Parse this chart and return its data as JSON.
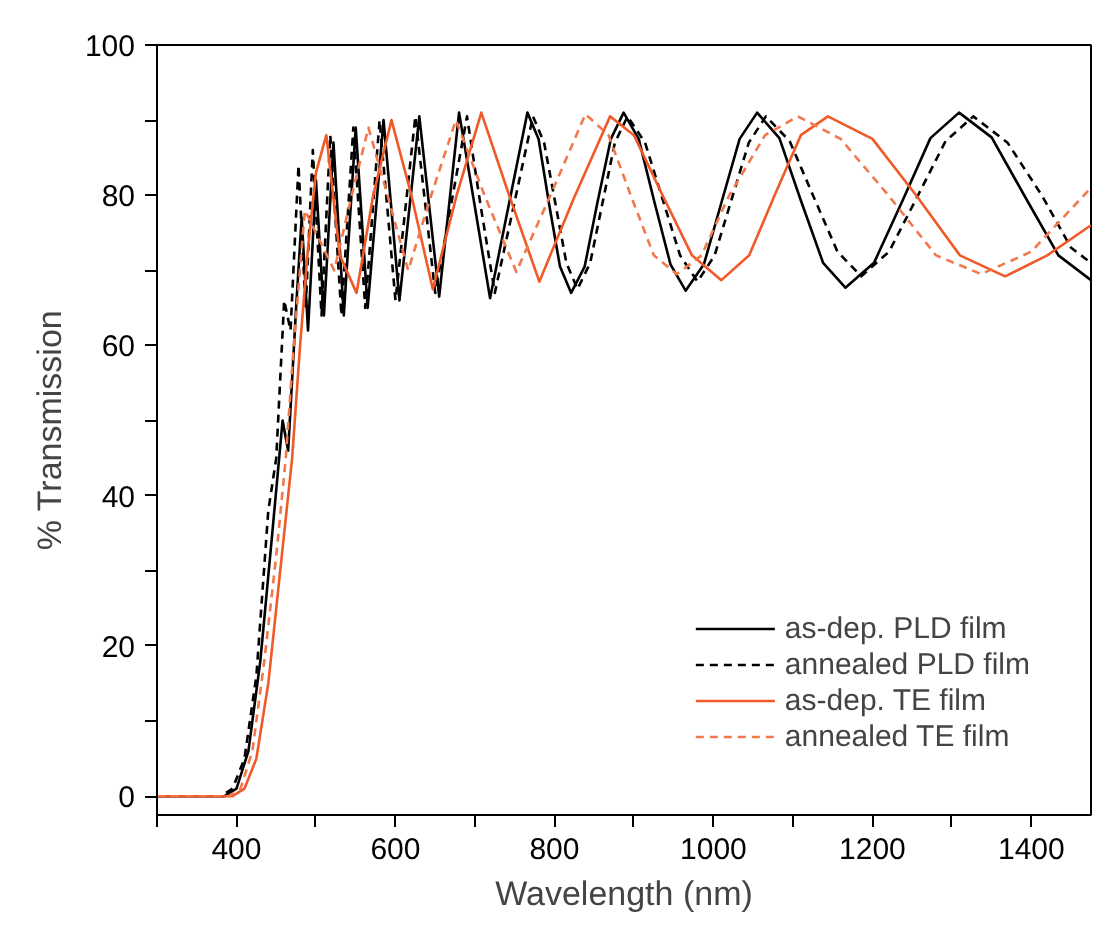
{
  "chart_data": {
    "type": "line",
    "xlabel": "Wavelength (nm)",
    "ylabel": "% Transmission",
    "xlim": [
      300,
      1475
    ],
    "ylim": [
      -2.5,
      100
    ],
    "xticks": [
      {
        "value": 300,
        "label": null
      },
      400,
      {
        "value": 500,
        "label": null
      },
      600,
      {
        "value": 700,
        "label": null
      },
      800,
      {
        "value": 900,
        "label": null
      },
      1000,
      {
        "value": 1100,
        "label": null
      },
      1200,
      {
        "value": 1300,
        "label": null
      },
      1400
    ],
    "yticks": [
      0,
      {
        "value": 10,
        "label": null
      },
      20,
      {
        "value": 30,
        "label": null
      },
      40,
      {
        "value": 50,
        "label": null
      },
      60,
      {
        "value": 70,
        "label": null
      },
      80,
      {
        "value": 90,
        "label": null
      },
      100
    ],
    "grid": false,
    "legend": "bottom right",
    "series": [
      {
        "name": "as-dep. PLD film",
        "color": "#000000",
        "line_style": "solid",
        "x": [
          300,
          385,
          400,
          415,
          430,
          445,
          458,
          465,
          475,
          482,
          490,
          500,
          510,
          522,
          535,
          550,
          565,
          585,
          605,
          630,
          655,
          680,
          699.5,
          719,
          742.5,
          766,
          780,
          793,
          807,
          821,
          838,
          854,
          871,
          887,
          906,
          926,
          946,
          965,
          988,
          1010,
          1033,
          1055,
          1083,
          1110,
          1138,
          1166,
          1202,
          1238,
          1273,
          1309,
          1350,
          1392,
          1434,
          1475
        ],
        "values": [
          0,
          0,
          1,
          6,
          18,
          35,
          50,
          46,
          65,
          77,
          62,
          82,
          64,
          87,
          64,
          89,
          65,
          90,
          66,
          90.5,
          66.5,
          91,
          78.7,
          66.3,
          78.7,
          91,
          87.5,
          79,
          70.5,
          67,
          70.5,
          79,
          87.5,
          91,
          87.5,
          79,
          70.8,
          67.3,
          70.8,
          79,
          87.5,
          91,
          87.6,
          79.3,
          71,
          67.7,
          71,
          79.3,
          87.6,
          91,
          87.7,
          79.8,
          72,
          68.7
        ]
      },
      {
        "name": "annealed PLD film",
        "color": "#000000",
        "line_style": "dashed",
        "x": [
          300,
          380,
          395,
          410,
          425,
          440,
          450,
          460,
          468,
          478,
          487,
          496,
          507,
          518,
          532,
          547,
          562,
          580,
          600,
          625,
          650,
          690,
          707,
          725,
          749,
          773,
          787,
          801,
          815,
          829,
          845,
          860.5,
          876,
          892,
          914,
          936,
          958,
          980,
          1001.5,
          1023,
          1044.5,
          1066,
          1096,
          1126,
          1156,
          1186,
          1221,
          1256.5,
          1292,
          1327,
          1370,
          1413,
          1450,
          1475
        ],
        "values": [
          0,
          0,
          1,
          5,
          16,
          38,
          45,
          66,
          62,
          84,
          65,
          86,
          64,
          88,
          64,
          89,
          65,
          90,
          66,
          90.5,
          67,
          90.5,
          78.7,
          67,
          78.7,
          90.5,
          87,
          79,
          71,
          67.5,
          71,
          79,
          87,
          90.5,
          87,
          79.5,
          72,
          68.5,
          72,
          79.5,
          87,
          90.5,
          87.2,
          79.8,
          72.5,
          69.2,
          72.5,
          79.8,
          87.2,
          90.5,
          87,
          80,
          73,
          71
        ]
      },
      {
        "name": "as-dep. TE film",
        "color": "#f05a28",
        "line_style": "solid",
        "x": [
          300,
          395,
          410,
          425,
          440,
          455,
          470,
          480,
          490,
          500,
          513,
          530,
          551,
          572,
          595,
          620,
          647,
          677,
          708,
          743,
          781,
          824,
          870,
          900,
          936,
          973,
          1010,
          1045,
          1077,
          1110,
          1144,
          1200,
          1255,
          1310,
          1367,
          1420,
          1475
        ],
        "values": [
          0,
          0,
          1,
          5,
          15,
          30,
          45,
          60,
          73,
          83,
          88,
          72,
          67,
          80,
          90,
          80,
          67.5,
          80,
          91,
          80,
          68.5,
          79.5,
          90.5,
          88,
          80,
          72,
          68.7,
          72,
          80,
          88,
          90.5,
          87.5,
          80,
          72,
          69.2,
          72,
          76
        ]
      },
      {
        "name": "annealed TE film",
        "color": "#f2784b",
        "line_style": "dashed",
        "x": [
          300,
          390,
          405,
          420,
          435,
          450,
          462,
          472,
          486,
          500,
          523,
          545,
          566,
          590,
          616,
          645,
          676,
          712,
          752,
          795,
          839,
          868,
          896,
          925,
          954,
          985,
          1020,
          1065,
          1106,
          1160,
          1220,
          1280,
          1337,
          1400,
          1475
        ],
        "values": [
          0,
          0,
          1,
          6,
          18,
          32,
          45,
          60,
          78,
          75,
          70,
          80,
          89,
          80,
          70,
          80,
          90,
          80,
          69.8,
          80,
          90.8,
          88,
          80,
          72,
          69.5,
          72,
          80,
          88,
          90.5,
          87.5,
          80,
          72,
          69.5,
          72.5,
          81
        ]
      }
    ]
  }
}
